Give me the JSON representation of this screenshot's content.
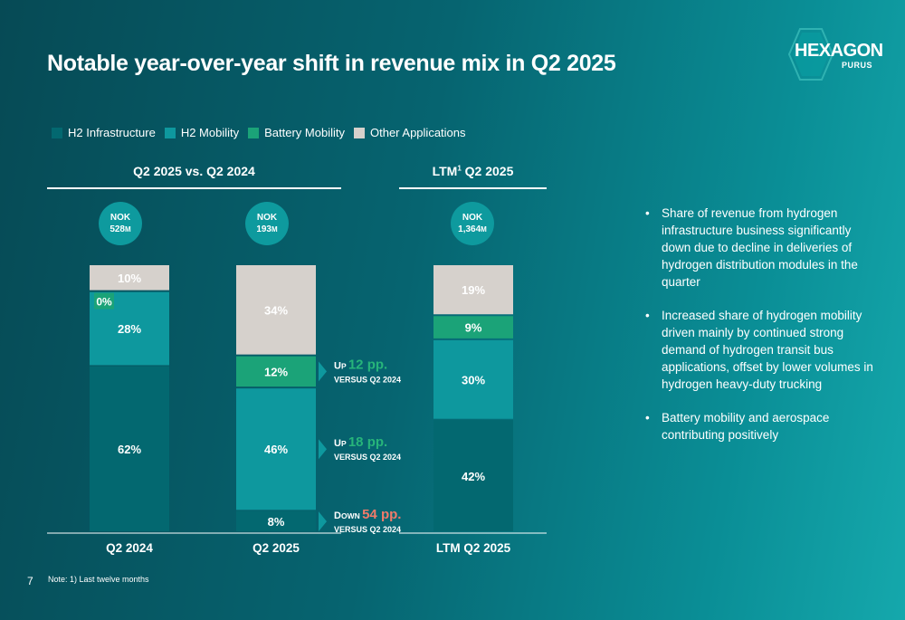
{
  "title": "Notable year-over-year shift in revenue mix in Q2 2025",
  "logo": {
    "brand": "HEXAGON",
    "sub": "PURUS"
  },
  "colors": {
    "h2_infrastructure": "#036870",
    "h2_mobility": "#0e989e",
    "battery_mobility": "#1ba378",
    "other": "#d6d1cc",
    "up_green": "#27b57a",
    "down_red": "#f07b6a"
  },
  "legend": [
    {
      "label": "H2 Infrastructure",
      "color": "#036870"
    },
    {
      "label": "H2 Mobility",
      "color": "#0e989e"
    },
    {
      "label": "Battery  Mobility",
      "color": "#1ba378"
    },
    {
      "label": "Other Applications",
      "color": "#d6d1cc"
    }
  ],
  "sections": {
    "left": "Q2 2025 vs. Q2 2024",
    "right_main": "LTM",
    "right_sup": "1",
    "right_rest": " Q2 2025"
  },
  "bubbles": [
    {
      "l1": "NOK",
      "l2": "528",
      "unit": "M"
    },
    {
      "l1": "NOK",
      "l2": "193",
      "unit": "M"
    },
    {
      "l1": "NOK",
      "l2": "1,364",
      "unit": "M"
    }
  ],
  "chart_data": {
    "type": "bar",
    "stacked": true,
    "normalized": true,
    "categories": [
      "Q2 2024",
      "Q2 2025",
      "LTM Q2 2025"
    ],
    "series": [
      {
        "name": "H2 Infrastructure",
        "values": [
          62,
          8,
          42
        ],
        "labels": [
          "62%",
          "8%",
          "42%"
        ]
      },
      {
        "name": "H2 Mobility",
        "values": [
          28,
          46,
          30
        ],
        "labels": [
          "28%",
          "46%",
          "30%"
        ]
      },
      {
        "name": "Battery  Mobility",
        "values": [
          0,
          12,
          9
        ],
        "labels": [
          "0%",
          "12%",
          "9%"
        ]
      },
      {
        "name": "Other Applications",
        "values": [
          10,
          34,
          19
        ],
        "labels": [
          "10%",
          "34%",
          "19%"
        ]
      }
    ],
    "annotations": [
      {
        "dir_cap": "U",
        "dir_rest": "P",
        "value": "12 pp.",
        "sub": "VERSUS Q2 2024",
        "series": "Battery  Mobility",
        "tone": "up"
      },
      {
        "dir_cap": "U",
        "dir_rest": "P",
        "value": "18 pp.",
        "sub": "VERSUS Q2 2024",
        "series": "H2 Mobility",
        "tone": "up"
      },
      {
        "dir_cap": "D",
        "dir_rest": "OWN",
        "value": "54 pp.",
        "sub": "VERSUS Q2 2024",
        "series": "H2 Infrastructure",
        "tone": "down"
      }
    ]
  },
  "bullets": [
    "Share of revenue from hydrogen infrastructure business significantly down due to decline in deliveries of hydrogen distribution modules in the quarter",
    "Increased share of hydrogen mobility driven mainly by continued strong demand of hydrogen transit bus applications, offset by lower volumes in hydrogen heavy-duty trucking",
    "Battery mobility and aerospace contributing positively"
  ],
  "bullet_char": "•",
  "footer": {
    "page": "7",
    "note": "Note: 1) Last twelve months"
  }
}
